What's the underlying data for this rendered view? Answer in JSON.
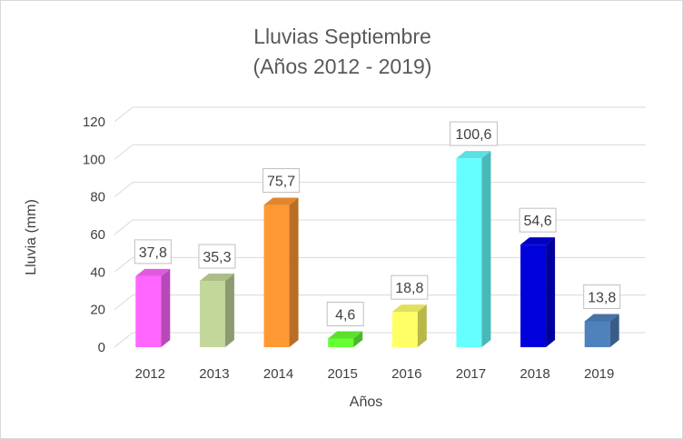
{
  "chart_data": {
    "type": "bar",
    "title": "Lluvias Septiembre",
    "subtitle": "(Años 2012 - 2019)",
    "xlabel": "Años",
    "ylabel": "Lluvia (mm)",
    "categories": [
      "2012",
      "2013",
      "2014",
      "2015",
      "2016",
      "2017",
      "2018",
      "2019"
    ],
    "values": [
      37.8,
      35.3,
      75.7,
      4.6,
      18.8,
      100.6,
      54.6,
      13.8
    ],
    "data_labels": [
      "37,8",
      "35,3",
      "75,7",
      "4,6",
      "18,8",
      "100,6",
      "54,6",
      "13,8"
    ],
    "ylim": [
      0,
      120
    ],
    "yticks": [
      "0",
      "20",
      "40",
      "60",
      "80",
      "100",
      "120"
    ],
    "grid": true,
    "legend": "none",
    "bar_style": "3d-column",
    "colors": [
      "#ff66ff",
      "#c4d79b",
      "#ff9933",
      "#66ff33",
      "#ffff66",
      "#66ffff",
      "#0000dd",
      "#4f81bd"
    ]
  }
}
